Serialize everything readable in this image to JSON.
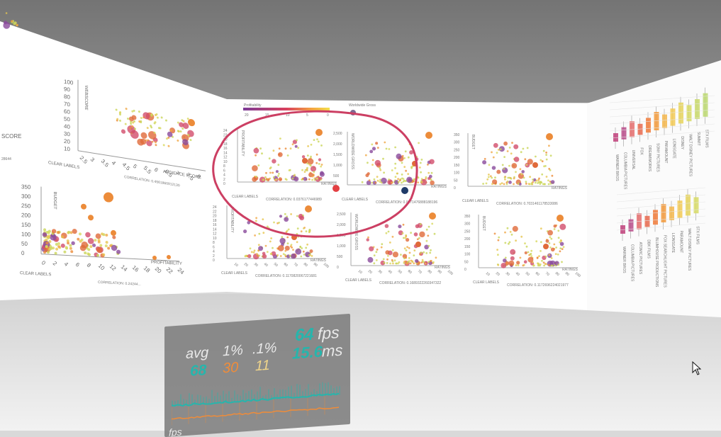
{
  "panel_center_left": {
    "scatter_top": {
      "y_label": "WEBSCORE",
      "y_ticks": [
        "100",
        "90",
        "80",
        "70",
        "60",
        "50",
        "40",
        "30",
        "20",
        "10"
      ],
      "x_label": "AUDIENCE SCORE",
      "x_ticks": [
        "2.5",
        "3",
        "3.5",
        "4",
        "4.5",
        "5",
        "5.5",
        "6",
        "6.5",
        "7",
        "7.5",
        "8"
      ],
      "left_axis_label": "CLEAR LABELS",
      "correlation": "CORRELATION: 0.4561860912130"
    },
    "scatter_bottom": {
      "y_label": "BUDGET",
      "y_ticks": [
        "350",
        "300",
        "250",
        "200",
        "150",
        "100",
        "50",
        "0"
      ],
      "x_ticks": [
        "0",
        "2",
        "4",
        "6",
        "8",
        "10",
        "12",
        "14",
        "16",
        "18",
        "20",
        "22",
        "24"
      ],
      "x_label": "PROFITABILITY",
      "left_axis_label": "CLEAR LABELS",
      "correlation": "CORRELATION: 0.24244..."
    },
    "far_left": {
      "x_label": "SCORE",
      "footer": "28644"
    }
  },
  "panel_center": {
    "legend_profitability": "Profitability",
    "legend_worldwide": "Worldwide Gross",
    "legend_ticks": [
      "20",
      "15",
      "10",
      "5",
      "0"
    ],
    "charts": [
      {
        "y_label": "PROFITABILITY",
        "x_label": "CLEAR LABELS",
        "correlation": "CORRELATION: 0.0376177446989",
        "y_ticks": [
          "24",
          "22",
          "20",
          "18",
          "16",
          "14",
          "12",
          "10",
          "8",
          "6",
          "4",
          "2",
          "0"
        ]
      },
      {
        "y_label": "WORLDWIDE GROSS",
        "x_label": "CLEAR LABELS",
        "correlation": "CORRELATION: 0.0071476888188196",
        "y_ticks": [
          "2,500",
          "2,000",
          "1,500",
          "1,000",
          "500",
          "0"
        ]
      },
      {
        "y_label": "BUDGET",
        "x_label": "CLEAR LABELS",
        "correlation": "CORRELATION: 0.7031461178533086",
        "y_ticks": [
          "350",
          "300",
          "250",
          "200",
          "150",
          "100",
          "50",
          "0"
        ]
      },
      {
        "y_label": "PROFITABILITY",
        "x_label": "CLEAR LABELS",
        "correlation": "CORRELATION: 0.1170820067221681",
        "x_ticks": [
          "10",
          "20",
          "30",
          "40",
          "50",
          "60",
          "70",
          "80",
          "90",
          "100"
        ],
        "y_ticks": [
          "24",
          "22",
          "20",
          "18",
          "16",
          "14",
          "12",
          "10",
          "8",
          "6",
          "4",
          "2",
          "0"
        ]
      },
      {
        "y_label": "WORLDWIDE GROSS",
        "x_label": "CLEAR LABELS",
        "correlation": "CORRELATION: 0.1689322260347322",
        "x_ticks": [
          "10",
          "20",
          "30",
          "40",
          "50",
          "60",
          "70",
          "80",
          "90",
          "100"
        ],
        "y_ticks": [
          "2,500",
          "2,000",
          "1,500",
          "1,000",
          "500",
          "0"
        ]
      },
      {
        "y_label": "BUDGET",
        "x_label": "CLEAR LABELS",
        "correlation": "CORRELATION: 0.1172696224021977",
        "x_ticks": [
          "10",
          "20",
          "30",
          "40",
          "50",
          "60",
          "70",
          "80",
          "90",
          "100"
        ],
        "y_ticks": [
          "350",
          "300",
          "250",
          "200",
          "150",
          "100",
          "50",
          "0"
        ]
      }
    ],
    "ratings_label": "RATINGS"
  },
  "panel_right": {
    "categories": [
      "WARNER BROS",
      "COLUMBIA PICTURES",
      "UNIVERSAL",
      "FOX",
      "DREAMWORKS",
      "SONY PICTURES",
      "PARAMOUNT",
      "LIONSGATE",
      "DISNEY",
      "WALT DISNEY PICTURES",
      "SUMMIT",
      "STX FILMS"
    ],
    "categories_bottom": [
      "WARNER BROS",
      "COLUMBIA PICTURES",
      "ATOMIC PICTURES",
      "DBK FILMS",
      "BLUMHOUSE PRODUCTIONS",
      "FOX SEARCHLIGHT PICTURES",
      "LIONSGATE",
      "PARAMOUNT",
      "WALT DISNEY PICTURES",
      "STX FILMS"
    ]
  },
  "stats": {
    "avg_label": "avg",
    "p1_label": "1%",
    "p01_label": ".1%",
    "avg_value": "68",
    "p1_value": "30",
    "p01_value": "11",
    "fps_value": "64",
    "fps_unit": "fps",
    "ms_value": "15.6",
    "ms_unit": "ms",
    "footer_label": "fps"
  },
  "colors": {
    "sky": "#7a7a7a",
    "floor": "#e6e6e6",
    "annotation": "#cc3f63",
    "teal": "#27b5ac",
    "orange": "#f08c39"
  }
}
